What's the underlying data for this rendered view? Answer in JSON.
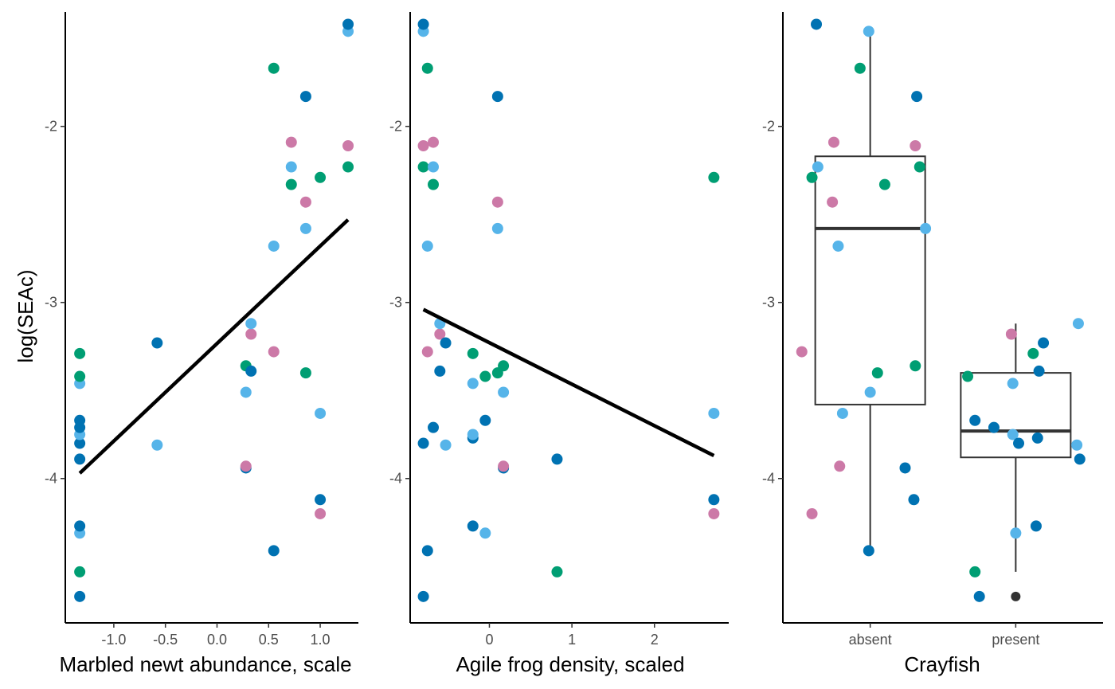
{
  "y_axis_title": "log(SEAc)",
  "colors": {
    "dark_blue": "#0072B2",
    "light_blue": "#56B4E9",
    "green": "#009E73",
    "pink": "#CC79A7",
    "box": "#333333",
    "line": "#000000"
  },
  "chart_data": [
    {
      "type": "scatter",
      "xlabel": "Marbled newt abundance, scale",
      "ylabel": "log(SEAc)",
      "xlim": [
        -1.47,
        1.37
      ],
      "ylim": [
        -4.82,
        -1.35
      ],
      "x_ticks": [
        -1.0,
        -0.5,
        0.0,
        0.5,
        1.0
      ],
      "x_tick_labels": [
        "-1.0",
        "-0.5",
        "0.0",
        "0.5",
        "1.0"
      ],
      "y_ticks": [
        -4,
        -3,
        -2
      ],
      "y_tick_labels": [
        "-4",
        "-3",
        "-2"
      ],
      "trend_line": {
        "x": [
          -1.33,
          1.27
        ],
        "y": [
          -3.97,
          -2.53
        ]
      },
      "points": [
        {
          "x": -1.33,
          "y": -4.67,
          "color": "dark_blue"
        },
        {
          "x": -1.33,
          "y": -4.53,
          "color": "green"
        },
        {
          "x": -1.33,
          "y": -4.31,
          "color": "light_blue"
        },
        {
          "x": -1.33,
          "y": -4.27,
          "color": "dark_blue"
        },
        {
          "x": -1.33,
          "y": -3.89,
          "color": "dark_blue"
        },
        {
          "x": -1.33,
          "y": -3.8,
          "color": "dark_blue"
        },
        {
          "x": -1.33,
          "y": -3.75,
          "color": "light_blue"
        },
        {
          "x": -1.33,
          "y": -3.71,
          "color": "dark_blue"
        },
        {
          "x": -1.33,
          "y": -3.67,
          "color": "dark_blue"
        },
        {
          "x": -1.33,
          "y": -3.46,
          "color": "light_blue"
        },
        {
          "x": -1.33,
          "y": -3.42,
          "color": "green"
        },
        {
          "x": -1.33,
          "y": -3.29,
          "color": "green"
        },
        {
          "x": -0.58,
          "y": -3.81,
          "color": "light_blue"
        },
        {
          "x": -0.58,
          "y": -3.23,
          "color": "dark_blue"
        },
        {
          "x": 0.28,
          "y": -3.94,
          "color": "dark_blue"
        },
        {
          "x": 0.28,
          "y": -3.93,
          "color": "pink"
        },
        {
          "x": 0.28,
          "y": -3.51,
          "color": "light_blue"
        },
        {
          "x": 0.28,
          "y": -3.36,
          "color": "green"
        },
        {
          "x": 0.33,
          "y": -3.39,
          "color": "dark_blue"
        },
        {
          "x": 0.33,
          "y": -3.18,
          "color": "pink"
        },
        {
          "x": 0.33,
          "y": -3.12,
          "color": "light_blue"
        },
        {
          "x": 0.55,
          "y": -4.41,
          "color": "dark_blue"
        },
        {
          "x": 0.55,
          "y": -3.28,
          "color": "pink"
        },
        {
          "x": 0.55,
          "y": -2.68,
          "color": "light_blue"
        },
        {
          "x": 0.55,
          "y": -1.67,
          "color": "green"
        },
        {
          "x": 0.72,
          "y": -2.33,
          "color": "green"
        },
        {
          "x": 0.72,
          "y": -2.23,
          "color": "light_blue"
        },
        {
          "x": 0.72,
          "y": -2.09,
          "color": "pink"
        },
        {
          "x": 0.86,
          "y": -3.4,
          "color": "green"
        },
        {
          "x": 0.86,
          "y": -2.58,
          "color": "light_blue"
        },
        {
          "x": 0.86,
          "y": -2.43,
          "color": "pink"
        },
        {
          "x": 0.86,
          "y": -1.83,
          "color": "dark_blue"
        },
        {
          "x": 1.0,
          "y": -4.2,
          "color": "pink"
        },
        {
          "x": 1.0,
          "y": -4.12,
          "color": "dark_blue"
        },
        {
          "x": 1.0,
          "y": -3.63,
          "color": "light_blue"
        },
        {
          "x": 1.0,
          "y": -2.29,
          "color": "green"
        },
        {
          "x": 1.27,
          "y": -2.23,
          "color": "green"
        },
        {
          "x": 1.27,
          "y": -2.11,
          "color": "pink"
        },
        {
          "x": 1.27,
          "y": -1.46,
          "color": "light_blue"
        },
        {
          "x": 1.27,
          "y": -1.42,
          "color": "dark_blue"
        }
      ]
    },
    {
      "type": "scatter",
      "xlabel": "Agile frog density, scaled",
      "ylabel": "",
      "xlim": [
        -0.96,
        2.9
      ],
      "ylim": [
        -4.82,
        -1.35
      ],
      "x_ticks": [
        0,
        1,
        2
      ],
      "x_tick_labels": [
        "0",
        "1",
        "2"
      ],
      "y_ticks": [
        -4,
        -3,
        -2
      ],
      "y_tick_labels": [
        "-4",
        "-3",
        "-2"
      ],
      "trend_line": {
        "x": [
          -0.8,
          2.72
        ],
        "y": [
          -3.04,
          -3.87
        ]
      },
      "points": [
        {
          "x": -0.8,
          "y": -4.67,
          "color": "dark_blue"
        },
        {
          "x": -0.8,
          "y": -3.8,
          "color": "dark_blue"
        },
        {
          "x": -0.8,
          "y": -2.23,
          "color": "green"
        },
        {
          "x": -0.8,
          "y": -2.11,
          "color": "pink"
        },
        {
          "x": -0.8,
          "y": -1.46,
          "color": "light_blue"
        },
        {
          "x": -0.8,
          "y": -1.42,
          "color": "dark_blue"
        },
        {
          "x": -0.75,
          "y": -4.41,
          "color": "dark_blue"
        },
        {
          "x": -0.75,
          "y": -3.28,
          "color": "pink"
        },
        {
          "x": -0.75,
          "y": -2.68,
          "color": "light_blue"
        },
        {
          "x": -0.75,
          "y": -1.67,
          "color": "green"
        },
        {
          "x": -0.68,
          "y": -3.71,
          "color": "dark_blue"
        },
        {
          "x": -0.68,
          "y": -2.33,
          "color": "green"
        },
        {
          "x": -0.68,
          "y": -2.23,
          "color": "light_blue"
        },
        {
          "x": -0.68,
          "y": -2.09,
          "color": "pink"
        },
        {
          "x": -0.6,
          "y": -3.39,
          "color": "dark_blue"
        },
        {
          "x": -0.6,
          "y": -3.18,
          "color": "pink"
        },
        {
          "x": -0.6,
          "y": -3.12,
          "color": "light_blue"
        },
        {
          "x": -0.53,
          "y": -3.81,
          "color": "light_blue"
        },
        {
          "x": -0.53,
          "y": -3.23,
          "color": "dark_blue"
        },
        {
          "x": -0.2,
          "y": -4.27,
          "color": "dark_blue"
        },
        {
          "x": -0.2,
          "y": -3.77,
          "color": "dark_blue"
        },
        {
          "x": -0.2,
          "y": -3.75,
          "color": "light_blue"
        },
        {
          "x": -0.2,
          "y": -3.46,
          "color": "light_blue"
        },
        {
          "x": -0.2,
          "y": -3.29,
          "color": "green"
        },
        {
          "x": -0.05,
          "y": -4.31,
          "color": "light_blue"
        },
        {
          "x": -0.05,
          "y": -3.67,
          "color": "dark_blue"
        },
        {
          "x": -0.05,
          "y": -3.42,
          "color": "green"
        },
        {
          "x": 0.1,
          "y": -3.4,
          "color": "green"
        },
        {
          "x": 0.1,
          "y": -2.58,
          "color": "light_blue"
        },
        {
          "x": 0.1,
          "y": -2.43,
          "color": "pink"
        },
        {
          "x": 0.1,
          "y": -1.83,
          "color": "dark_blue"
        },
        {
          "x": 0.17,
          "y": -3.94,
          "color": "dark_blue"
        },
        {
          "x": 0.17,
          "y": -3.93,
          "color": "pink"
        },
        {
          "x": 0.17,
          "y": -3.51,
          "color": "light_blue"
        },
        {
          "x": 0.17,
          "y": -3.36,
          "color": "green"
        },
        {
          "x": 0.82,
          "y": -4.53,
          "color": "green"
        },
        {
          "x": 0.82,
          "y": -3.89,
          "color": "dark_blue"
        },
        {
          "x": 2.72,
          "y": -4.2,
          "color": "pink"
        },
        {
          "x": 2.72,
          "y": -4.12,
          "color": "dark_blue"
        },
        {
          "x": 2.72,
          "y": -3.63,
          "color": "light_blue"
        },
        {
          "x": 2.72,
          "y": -2.29,
          "color": "green"
        }
      ]
    },
    {
      "type": "box",
      "xlabel": "Crayfish",
      "ylabel": "",
      "categories": [
        "absent",
        "present"
      ],
      "xlim": [
        0.4,
        2.6
      ],
      "ylim": [
        -4.82,
        -1.35
      ],
      "y_ticks": [
        -4,
        -3,
        -2
      ],
      "y_tick_labels": [
        "-4",
        "-3",
        "-2"
      ],
      "boxes": [
        {
          "category": "absent",
          "whisker_low": -4.41,
          "q1": -3.58,
          "median": -2.58,
          "q3": -2.17,
          "whisker_high": -1.46,
          "outliers": []
        },
        {
          "category": "present",
          "whisker_low": -4.53,
          "q1": -3.88,
          "median": -3.73,
          "q3": -3.4,
          "whisker_high": -3.12,
          "outliers": [
            -4.67
          ]
        }
      ],
      "points": [
        {
          "x": 0.63,
          "y": -1.42,
          "color": "dark_blue"
        },
        {
          "x": 0.99,
          "y": -1.46,
          "color": "light_blue"
        },
        {
          "x": 0.93,
          "y": -1.67,
          "color": "green"
        },
        {
          "x": 1.32,
          "y": -1.83,
          "color": "dark_blue"
        },
        {
          "x": 0.75,
          "y": -2.09,
          "color": "pink"
        },
        {
          "x": 1.31,
          "y": -2.11,
          "color": "pink"
        },
        {
          "x": 0.64,
          "y": -2.23,
          "color": "light_blue"
        },
        {
          "x": 1.34,
          "y": -2.23,
          "color": "green"
        },
        {
          "x": 0.6,
          "y": -2.29,
          "color": "green"
        },
        {
          "x": 1.1,
          "y": -2.33,
          "color": "green"
        },
        {
          "x": 0.74,
          "y": -2.43,
          "color": "pink"
        },
        {
          "x": 1.38,
          "y": -2.58,
          "color": "light_blue"
        },
        {
          "x": 0.78,
          "y": -2.68,
          "color": "light_blue"
        },
        {
          "x": 0.53,
          "y": -3.28,
          "color": "pink"
        },
        {
          "x": 1.31,
          "y": -3.36,
          "color": "green"
        },
        {
          "x": 1.05,
          "y": -3.4,
          "color": "green"
        },
        {
          "x": 1.0,
          "y": -3.51,
          "color": "light_blue"
        },
        {
          "x": 0.81,
          "y": -3.63,
          "color": "light_blue"
        },
        {
          "x": 0.79,
          "y": -3.93,
          "color": "pink"
        },
        {
          "x": 1.24,
          "y": -3.94,
          "color": "dark_blue"
        },
        {
          "x": 0.6,
          "y": -4.2,
          "color": "pink"
        },
        {
          "x": 1.3,
          "y": -4.12,
          "color": "dark_blue"
        },
        {
          "x": 0.99,
          "y": -4.41,
          "color": "dark_blue"
        },
        {
          "x": 2.43,
          "y": -3.12,
          "color": "light_blue"
        },
        {
          "x": 1.97,
          "y": -3.18,
          "color": "pink"
        },
        {
          "x": 2.19,
          "y": -3.23,
          "color": "dark_blue"
        },
        {
          "x": 2.12,
          "y": -3.29,
          "color": "green"
        },
        {
          "x": 2.16,
          "y": -3.39,
          "color": "dark_blue"
        },
        {
          "x": 1.67,
          "y": -3.42,
          "color": "green"
        },
        {
          "x": 1.98,
          "y": -3.46,
          "color": "light_blue"
        },
        {
          "x": 1.72,
          "y": -3.67,
          "color": "dark_blue"
        },
        {
          "x": 1.85,
          "y": -3.71,
          "color": "dark_blue"
        },
        {
          "x": 1.98,
          "y": -3.75,
          "color": "light_blue"
        },
        {
          "x": 2.15,
          "y": -3.77,
          "color": "dark_blue"
        },
        {
          "x": 2.02,
          "y": -3.8,
          "color": "dark_blue"
        },
        {
          "x": 2.42,
          "y": -3.81,
          "color": "light_blue"
        },
        {
          "x": 2.44,
          "y": -3.89,
          "color": "dark_blue"
        },
        {
          "x": 2.14,
          "y": -4.27,
          "color": "dark_blue"
        },
        {
          "x": 2.0,
          "y": -4.31,
          "color": "light_blue"
        },
        {
          "x": 1.72,
          "y": -4.53,
          "color": "green"
        },
        {
          "x": 1.75,
          "y": -4.67,
          "color": "dark_blue"
        }
      ]
    }
  ]
}
